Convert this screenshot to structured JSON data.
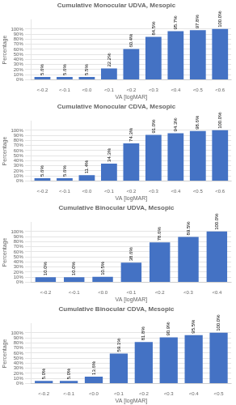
{
  "chart_data": [
    {
      "type": "bar",
      "title": "Cumulative Monocular UDVA, Mesopic",
      "categories": [
        "<-0.2",
        "<-0.1",
        "<0.0",
        "<0.1",
        "<0.2",
        "<0.3",
        "<0.4",
        "<0.5",
        "<0.6"
      ],
      "values": [
        5.6,
        5.6,
        5.5,
        22.2,
        60.4,
        84.5,
        95.7,
        97.8,
        100.0
      ],
      "value_labels": [
        "5.6%",
        "5.6%",
        "5.5%",
        "22.2%",
        "60.4%",
        "84.5%",
        "95.7%",
        "97.8%",
        "100.0%"
      ],
      "color": "#4472C4",
      "xlabel": "VA [logMAR]",
      "ylabel": "Percentage",
      "ylim": [
        0,
        118
      ],
      "yticks": [
        {
          "value": 0,
          "label": "0%"
        },
        {
          "value": 10,
          "label": "10%"
        },
        {
          "value": 20,
          "label": "20%"
        },
        {
          "value": 30,
          "label": "30%"
        },
        {
          "value": 40,
          "label": "40%"
        },
        {
          "value": 50,
          "label": "50%"
        },
        {
          "value": 60,
          "label": "60%"
        },
        {
          "value": 70,
          "label": "70%"
        },
        {
          "value": 80,
          "label": "80%"
        },
        {
          "value": 90,
          "label": "90%"
        },
        {
          "value": 100,
          "label": "100%"
        }
      ],
      "grid": true,
      "data_labels": true
    },
    {
      "type": "bar",
      "title": "Cumulative Monocular CDVA, Mesopic",
      "categories": [
        "<-0.2",
        "<-0.1",
        "<0.0",
        "<0.1",
        "<0.2",
        "<0.3",
        "<0.4",
        "<0.5",
        "<0.6"
      ],
      "values": [
        5.6,
        5.6,
        11.4,
        34.3,
        74.3,
        91.0,
        94.3,
        98.6,
        100.0
      ],
      "value_labels": [
        "5.6%",
        "5.6%",
        "11.4%",
        "34.3%",
        "74.3%",
        "91.0%",
        "94.3%",
        "98.6%",
        "100.0%"
      ],
      "color": "#4472C4",
      "xlabel": "VA [logMAR]",
      "ylabel": "Percentage",
      "ylim": [
        0,
        118
      ],
      "yticks": [
        {
          "value": 0,
          "label": "0%"
        },
        {
          "value": 10,
          "label": "10%"
        },
        {
          "value": 20,
          "label": "20%"
        },
        {
          "value": 30,
          "label": "30%"
        },
        {
          "value": 40,
          "label": "40%"
        },
        {
          "value": 50,
          "label": "50%"
        },
        {
          "value": 60,
          "label": "60%"
        },
        {
          "value": 70,
          "label": "70%"
        },
        {
          "value": 80,
          "label": "80%"
        },
        {
          "value": 90,
          "label": "90%"
        },
        {
          "value": 100,
          "label": "100%"
        }
      ],
      "grid": true,
      "data_labels": true
    },
    {
      "type": "bar",
      "title": "Cumulative Binocular UDVA, Mesopic",
      "categories": [
        "<-0.2",
        "<-0.1",
        "<0.0",
        "<0.1",
        "<0.2",
        "<0.3",
        "<0.4"
      ],
      "values": [
        10.0,
        10.0,
        10.5,
        38.6,
        78.6,
        89.5,
        100.0
      ],
      "value_labels": [
        "10.0%",
        "10.0%",
        "10.5%",
        "38.6%",
        "78.6%",
        "89.5%",
        "100.0%"
      ],
      "color": "#4472C4",
      "xlabel": "VA [logMAR]",
      "ylabel": "Percentage",
      "ylim": [
        0,
        118
      ],
      "yticks": [
        {
          "value": 0,
          "label": "0%"
        },
        {
          "value": 10,
          "label": "10%"
        },
        {
          "value": 20,
          "label": "20%"
        },
        {
          "value": 30,
          "label": "30%"
        },
        {
          "value": 40,
          "label": "40%"
        },
        {
          "value": 50,
          "label": "50%"
        },
        {
          "value": 60,
          "label": "60%"
        },
        {
          "value": 70,
          "label": "70%"
        },
        {
          "value": 80,
          "label": "80%"
        },
        {
          "value": 90,
          "label": "90%"
        },
        {
          "value": 100,
          "label": "100%"
        }
      ],
      "grid": true,
      "data_labels": true
    },
    {
      "type": "bar",
      "title": "Cumulative Binocular CDVA, Mesopic",
      "categories": [
        "<-0.2",
        "<-0.1",
        "<0.0",
        "<0.1",
        "<0.2",
        "<0.3",
        "<0.4",
        "<0.5"
      ],
      "values": [
        5.0,
        5.0,
        13.6,
        59.1,
        81.8,
        90.9,
        95.5,
        100.0
      ],
      "value_labels": [
        "5.0%",
        "5.0%",
        "13.6%",
        "59.1%",
        "81.8%",
        "90.9%",
        "95.5%",
        "100.0%"
      ],
      "color": "#4472C4",
      "xlabel": "VA [logMAR]",
      "ylabel": "Percentage",
      "ylim": [
        0,
        118
      ],
      "yticks": [
        {
          "value": 0,
          "label": "0%"
        },
        {
          "value": 10,
          "label": "10%"
        },
        {
          "value": 20,
          "label": "20%"
        },
        {
          "value": 30,
          "label": "30%"
        },
        {
          "value": 40,
          "label": "40%"
        },
        {
          "value": 50,
          "label": "50%"
        },
        {
          "value": 60,
          "label": "60%"
        },
        {
          "value": 70,
          "label": "70%"
        },
        {
          "value": 80,
          "label": "80%"
        },
        {
          "value": 90,
          "label": "90%"
        },
        {
          "value": 100,
          "label": "100%"
        }
      ],
      "grid": true,
      "data_labels": true
    }
  ]
}
